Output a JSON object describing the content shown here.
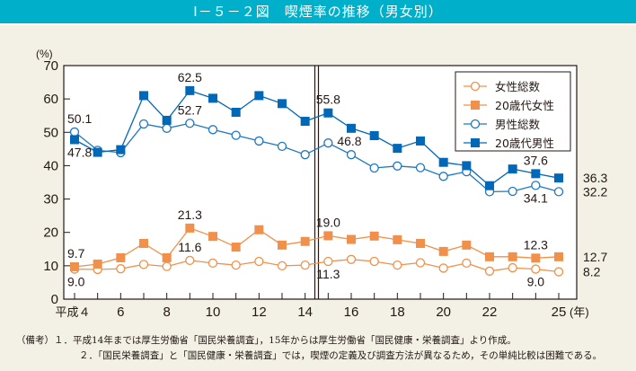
{
  "title": "Ⅰ－５－２図　喫煙率の推移（男女別）",
  "notes": [
    "（備考）１．平成14年までは厚生労働省「国民栄養調査」，15年からは厚生労働省「国民健康・栄養調査」より作成。",
    "２．「国民栄養調査」と「国民健康・栄養調査」では，喫煙の定義及び調査方法が異なるため，その単純比較は困難である。"
  ],
  "chart_data": {
    "type": "line",
    "title": "喫煙率の推移（男女別）",
    "ylabel": "(%)",
    "xlabel": "(年)",
    "ylim": [
      0,
      70
    ],
    "yticks": [
      0,
      10,
      20,
      30,
      40,
      50,
      60,
      70
    ],
    "x": [
      4,
      5,
      6,
      7,
      8,
      9,
      10,
      11,
      12,
      13,
      14,
      15,
      16,
      17,
      18,
      19,
      20,
      21,
      22,
      23,
      24,
      25
    ],
    "xtick_labels": [
      {
        "x": 4,
        "label": "平成４"
      },
      {
        "x": 6,
        "label": "6"
      },
      {
        "x": 8,
        "label": "8"
      },
      {
        "x": 10,
        "label": "10"
      },
      {
        "x": 12,
        "label": "12"
      },
      {
        "x": 14,
        "label": "14"
      },
      {
        "x": 16,
        "label": "16"
      },
      {
        "x": 18,
        "label": "18"
      },
      {
        "x": 20,
        "label": "20"
      },
      {
        "x": 22,
        "label": "22"
      },
      {
        "x": 25,
        "label": "25"
      }
    ],
    "break_between": [
      14,
      15
    ],
    "grid": false,
    "legend_position": "top-right",
    "series": [
      {
        "name": "女性総数",
        "color": "#f0904a",
        "marker": "open-circle",
        "values": [
          9.0,
          8.9,
          9.1,
          10.4,
          9.8,
          11.6,
          10.8,
          10.2,
          11.3,
          10.0,
          10.2,
          11.3,
          11.9,
          11.3,
          10.2,
          10.9,
          9.3,
          10.8,
          8.4,
          9.4,
          9.0,
          8.2
        ]
      },
      {
        "name": "20歳代女性",
        "color": "#f0904a",
        "marker": "filled-square",
        "values": [
          9.7,
          10.5,
          12.4,
          16.7,
          12.4,
          21.3,
          18.8,
          15.6,
          20.8,
          16.2,
          17.3,
          19.0,
          17.9,
          18.9,
          17.8,
          16.7,
          14.3,
          16.2,
          12.7,
          12.7,
          12.3,
          12.7
        ]
      },
      {
        "name": "男性総数",
        "color": "#1f77c0",
        "marker": "open-circle",
        "values": [
          50.1,
          44.6,
          43.9,
          52.5,
          51.2,
          52.7,
          50.8,
          49.1,
          47.4,
          45.8,
          43.3,
          46.8,
          43.3,
          39.3,
          39.9,
          39.4,
          36.8,
          38.2,
          32.2,
          32.3,
          34.1,
          32.2
        ]
      },
      {
        "name": "20歳代男性",
        "color": "#0068b7",
        "marker": "filled-square",
        "values": [
          47.8,
          44.0,
          44.8,
          61.0,
          53.6,
          62.5,
          60.2,
          56.0,
          61.0,
          58.6,
          53.3,
          55.8,
          51.2,
          49.0,
          45.2,
          47.4,
          41.0,
          40.0,
          34.0,
          39.0,
          37.6,
          36.3
        ]
      }
    ],
    "annotations": [
      {
        "text": "50.1",
        "x": 4,
        "series": "男性総数",
        "pos": "above"
      },
      {
        "text": "47.8",
        "x": 4,
        "series": "20歳代男性",
        "pos": "below"
      },
      {
        "text": "62.5",
        "x": 9,
        "series": "20歳代男性",
        "pos": "above"
      },
      {
        "text": "52.7",
        "x": 9,
        "series": "男性総数",
        "pos": "above"
      },
      {
        "text": "55.8",
        "x": 15,
        "series": "20歳代男性",
        "pos": "above"
      },
      {
        "text": "46.8",
        "x": 15,
        "series": "男性総数",
        "pos": "right"
      },
      {
        "text": "37.6",
        "x": 24,
        "series": "20歳代男性",
        "pos": "above"
      },
      {
        "text": "34.1",
        "x": 24,
        "series": "男性総数",
        "pos": "below"
      },
      {
        "text": "36.3",
        "x": 25,
        "series": "20歳代男性",
        "pos": "outside"
      },
      {
        "text": "32.2",
        "x": 25,
        "series": "男性総数",
        "pos": "outside"
      },
      {
        "text": "9.7",
        "x": 4,
        "series": "20歳代女性",
        "pos": "above"
      },
      {
        "text": "9.0",
        "x": 4,
        "series": "女性総数",
        "pos": "below"
      },
      {
        "text": "21.3",
        "x": 9,
        "series": "20歳代女性",
        "pos": "above"
      },
      {
        "text": "11.6",
        "x": 9,
        "series": "女性総数",
        "pos": "above"
      },
      {
        "text": "19.0",
        "x": 15,
        "series": "20歳代女性",
        "pos": "above"
      },
      {
        "text": "11.3",
        "x": 15,
        "series": "女性総数",
        "pos": "below"
      },
      {
        "text": "12.3",
        "x": 24,
        "series": "20歳代女性",
        "pos": "above"
      },
      {
        "text": "9.0",
        "x": 24,
        "series": "女性総数",
        "pos": "below"
      },
      {
        "text": "12.7",
        "x": 25,
        "series": "20歳代女性",
        "pos": "outside"
      },
      {
        "text": "8.2",
        "x": 25,
        "series": "女性総数",
        "pos": "outside"
      }
    ]
  }
}
